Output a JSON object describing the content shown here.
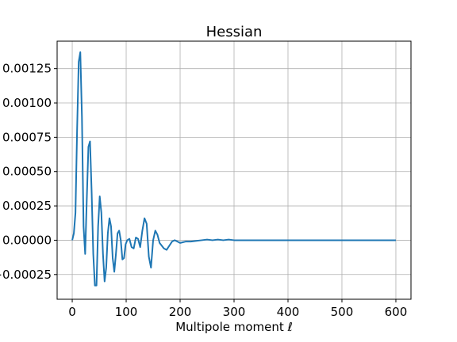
{
  "chart_data": {
    "type": "line",
    "title": "Hessian",
    "xlabel": "Multipole moment ℓ",
    "ylabel": "",
    "xlim": [
      -28,
      628
    ],
    "ylim": [
      -0.00043,
      0.00145
    ],
    "xticks": [
      0,
      100,
      200,
      300,
      400,
      500,
      600
    ],
    "xtick_labels": [
      "0",
      "100",
      "200",
      "300",
      "400",
      "500",
      "600"
    ],
    "yticks": [
      -0.00025,
      0.0,
      0.00025,
      0.0005,
      0.00075,
      0.001,
      0.00125
    ],
    "ytick_labels": [
      "−0.00025",
      "0.00000",
      "0.00025",
      "0.00050",
      "0.00075",
      "0.00100",
      "0.00125"
    ],
    "grid": true,
    "legend": "none",
    "colors": {
      "series": "#1f77b4",
      "grid": "#b0b0b0",
      "axes": "#000000"
    },
    "series": [
      {
        "x": [
          0,
          3,
          6,
          9,
          12,
          15,
          18,
          21,
          24,
          27,
          30,
          33,
          36,
          39,
          42,
          45,
          48,
          51,
          54,
          57,
          60,
          63,
          66,
          69,
          72,
          75,
          78,
          81,
          84,
          87,
          90,
          93,
          96,
          99,
          102,
          106,
          110,
          114,
          118,
          122,
          126,
          130,
          134,
          138,
          142,
          146,
          150,
          154,
          158,
          162,
          166,
          170,
          175,
          180,
          185,
          190,
          195,
          200,
          210,
          220,
          230,
          240,
          250,
          260,
          270,
          280,
          290,
          300,
          310,
          320,
          350,
          400,
          450,
          500,
          550,
          600
        ],
        "y": [
          0.0,
          5e-05,
          0.0002,
          0.0008,
          0.0013,
          0.00137,
          0.0009,
          0.0001,
          -0.0001,
          0.0003,
          0.00068,
          0.00072,
          0.00035,
          -0.0001,
          -0.00033,
          -0.00033,
          0.0001,
          0.00032,
          0.0002,
          -0.0001,
          -0.0003,
          -0.0002,
          5e-05,
          0.00016,
          0.0001,
          -0.00013,
          -0.00023,
          -0.0001,
          5e-05,
          7e-05,
          0.0,
          -0.00014,
          -0.00013,
          -3e-05,
          0.0,
          1e-05,
          -5e-05,
          -6e-05,
          2e-05,
          1e-05,
          -5e-05,
          7e-05,
          0.00016,
          0.00012,
          -0.00012,
          -0.0002,
          0.0,
          7e-05,
          4e-05,
          -2e-05,
          -4e-05,
          -6e-05,
          -7e-05,
          -4e-05,
          -1e-05,
          0.0,
          -1e-05,
          -2e-05,
          -1e-05,
          -1e-05,
          -5e-06,
          0.0,
          5e-06,
          0.0,
          5e-06,
          0.0,
          5e-06,
          0.0,
          0.0,
          0.0,
          0.0,
          0.0,
          0.0,
          0.0,
          0.0,
          0.0
        ]
      }
    ]
  }
}
